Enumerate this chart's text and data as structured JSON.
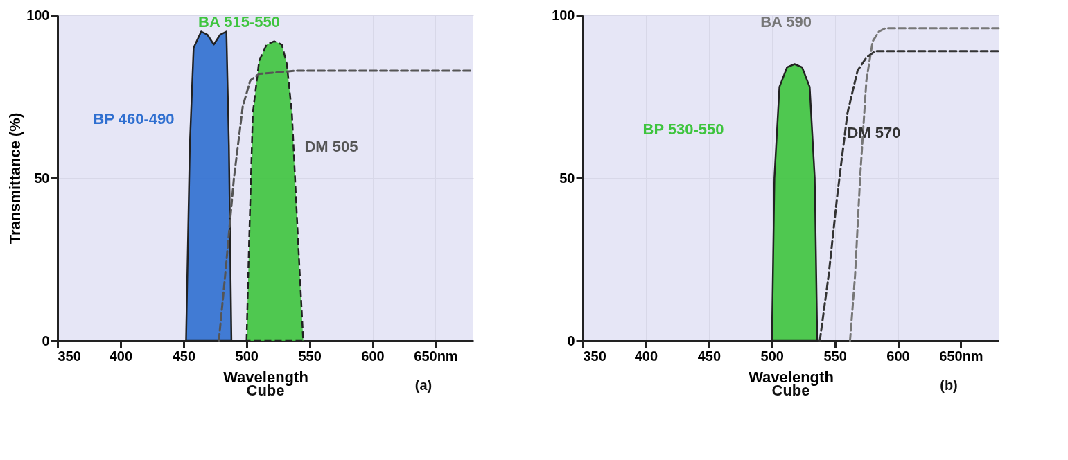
{
  "chart_data": [
    {
      "type": "area",
      "xlabel": "Wavelength",
      "ylabel": "Transmittance (%)",
      "xlim": [
        350,
        680
      ],
      "ylim": [
        0,
        100
      ],
      "xticks": [
        350,
        400,
        450,
        500,
        550,
        600,
        {
          "value": 650,
          "label": "650nm"
        }
      ],
      "yticks": [
        0,
        50,
        100
      ],
      "grid": true,
      "marker": "none",
      "annotations": [
        "Cube",
        "(a)"
      ],
      "series": [
        {
          "name": "BP 460-490",
          "type": "area",
          "color": "#2f6fd0",
          "line_style": "solid",
          "x": [
            452,
            455,
            458,
            464,
            469,
            474,
            479,
            484,
            486,
            488
          ],
          "values": [
            0,
            60,
            90,
            95,
            94,
            91,
            94,
            95,
            60,
            0
          ]
        },
        {
          "name": "BA 515-550",
          "type": "area",
          "color": "#3ec43e",
          "line_style": "dashed",
          "x": [
            500,
            502,
            505,
            510,
            516,
            522,
            528,
            532,
            536,
            541,
            545
          ],
          "values": [
            0,
            30,
            70,
            86,
            91,
            92,
            91,
            85,
            70,
            30,
            0
          ]
        },
        {
          "name": "DM 505",
          "type": "line",
          "color": "#555555",
          "line_style": "dashed",
          "x": [
            478,
            483,
            490,
            497,
            503,
            510,
            540,
            600,
            680
          ],
          "values": [
            0,
            20,
            50,
            72,
            80,
            82,
            83,
            83,
            83
          ]
        }
      ]
    },
    {
      "type": "area",
      "xlabel": "Wavelength",
      "xlim": [
        350,
        680
      ],
      "ylim": [
        0,
        100
      ],
      "xticks": [
        350,
        400,
        450,
        500,
        550,
        600,
        {
          "value": 650,
          "label": "650nm"
        }
      ],
      "yticks": [
        0,
        50,
        100
      ],
      "grid": true,
      "marker": "none",
      "annotations": [
        "Cube",
        "(b)"
      ],
      "series": [
        {
          "name": "BP 530-550",
          "type": "area",
          "color": "#3ec43e",
          "line_style": "solid",
          "x": [
            500,
            502,
            506,
            512,
            518,
            524,
            530,
            534,
            536
          ],
          "values": [
            0,
            50,
            78,
            84,
            85,
            84,
            78,
            50,
            0
          ]
        },
        {
          "name": "BA 590",
          "type": "line",
          "color": "#777777",
          "line_style": "dashed",
          "x": [
            562,
            566,
            570,
            575,
            580,
            585,
            590,
            680
          ],
          "values": [
            0,
            20,
            50,
            80,
            92,
            95,
            96,
            96
          ]
        },
        {
          "name": "DM 570",
          "type": "line",
          "color": "#333333",
          "line_style": "dashed",
          "x": [
            538,
            545,
            552,
            560,
            568,
            575,
            582,
            680
          ],
          "values": [
            0,
            20,
            45,
            70,
            83,
            87,
            89,
            89
          ]
        }
      ]
    }
  ]
}
